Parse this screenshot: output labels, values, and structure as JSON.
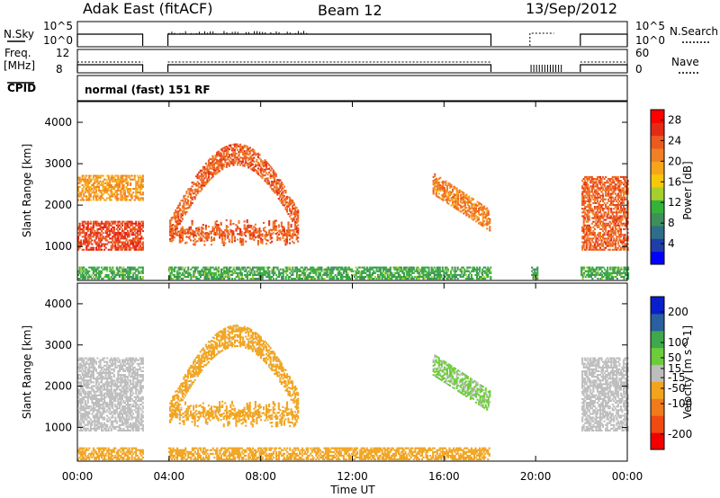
{
  "header": {
    "station": "Adak East (fitACF)",
    "beam": "Beam 12",
    "date": "13/Sep/2012"
  },
  "panels": {
    "nsky_label": "N.Sky",
    "nsearch_label": "N.Search",
    "freq_label_1": "Freq.",
    "freq_label_2": "[MHz]",
    "nave_label": "Nave",
    "cpid_label": "CPID",
    "cpid_value": "normal (fast) 151 RF",
    "nsky_ticks": [
      "10^5",
      "10^0"
    ],
    "nsearch_ticks": [
      "10^5",
      "10^0"
    ],
    "freq_ticks": [
      "12",
      "8"
    ],
    "nave_ticks": [
      "60",
      "0"
    ]
  },
  "colors": {
    "power": [
      "#0000ff",
      "#1e3fa8",
      "#2f6e88",
      "#3e8f5a",
      "#34b23a",
      "#a6cf2e",
      "#f6c80a",
      "#f7a51b",
      "#f17f25",
      "#ec5a1f",
      "#e32a17",
      "#ff0000"
    ],
    "velocity": [
      "#f20000",
      "#f04a12",
      "#f07a1c",
      "#f2a41e",
      "#bdbdbd",
      "#6dcc3a",
      "#3ea84a",
      "#2a5fa0",
      "#0a1fcc"
    ],
    "background_gap": "#ffffff"
  },
  "chart_data": [
    {
      "type": "heatmap",
      "title": "",
      "xlabel": "Time UT",
      "ylabel": "Slant Range [km]",
      "x_ticks": [
        "00:00",
        "04:00",
        "08:00",
        "12:00",
        "16:00",
        "20:00",
        "00:00"
      ],
      "xlim_hours": [
        0,
        24
      ],
      "ylim_km": [
        180,
        4500
      ],
      "y_ticks": [
        1000,
        2000,
        3000,
        4000
      ],
      "colorbar": {
        "label": "Power [dB]",
        "ticks": [
          4,
          8,
          12,
          16,
          20,
          24,
          28
        ],
        "range": [
          0,
          30
        ]
      },
      "data_gaps_hours": [
        [
          2.85,
          3.95
        ],
        [
          18.05,
          19.75
        ],
        [
          20.05,
          21.95
        ]
      ],
      "features": [
        {
          "name": "E-region band",
          "t": [
            0,
            24
          ],
          "range_km": [
            200,
            500
          ],
          "level_db": 10
        },
        {
          "name": "lower F band",
          "t": [
            0,
            2.85
          ],
          "range_km": [
            900,
            1600
          ],
          "level_db": 26
        },
        {
          "name": "upper F band",
          "t": [
            0,
            2.85
          ],
          "range_km": [
            2100,
            2700
          ],
          "level_db": 20
        },
        {
          "name": "morning arc",
          "t": [
            3.95,
            9.6
          ],
          "range_km": [
            1000,
            3700
          ],
          "level_db": 24
        },
        {
          "name": "afternoon streak",
          "t": [
            15.5,
            18.0
          ],
          "range_km": [
            1300,
            3000
          ],
          "level_db": 22
        },
        {
          "name": "late band",
          "t": [
            22.0,
            24.0
          ],
          "range_km": [
            900,
            2700
          ],
          "level_db": 24
        }
      ]
    },
    {
      "type": "heatmap",
      "title": "",
      "xlabel": "Time UT",
      "ylabel": "Slant Range [km]",
      "x_ticks": [
        "00:00",
        "04:00",
        "08:00",
        "12:00",
        "16:00",
        "20:00",
        "00:00"
      ],
      "xlim_hours": [
        0,
        24
      ],
      "ylim_km": [
        180,
        4500
      ],
      "y_ticks": [
        1000,
        2000,
        3000,
        4000
      ],
      "colorbar": {
        "label": "Velocity [m s^-1]",
        "ticks": [
          200,
          100,
          50,
          15,
          -15,
          -50,
          -100,
          -200
        ],
        "range": [
          -250,
          250
        ]
      },
      "data_gaps_hours": [
        [
          2.85,
          3.95
        ],
        [
          18.05,
          19.75
        ],
        [
          20.05,
          21.95
        ]
      ],
      "features": [
        {
          "name": "ground scatter",
          "t": [
            0,
            2.85
          ],
          "range_km": [
            900,
            2700
          ],
          "velocity": 0
        },
        {
          "name": "E-region band",
          "t": [
            0,
            18
          ],
          "range_km": [
            200,
            500
          ],
          "velocity": -60
        },
        {
          "name": "morning arc",
          "t": [
            3.95,
            9.6
          ],
          "range_km": [
            1000,
            3700
          ],
          "velocity": -50
        },
        {
          "name": "afternoon streak",
          "t": [
            15.5,
            18.0
          ],
          "range_km": [
            1300,
            3000
          ],
          "velocity": 40
        },
        {
          "name": "late band",
          "t": [
            22.0,
            24.0
          ],
          "range_km": [
            900,
            2700
          ],
          "velocity": 0
        }
      ]
    }
  ]
}
